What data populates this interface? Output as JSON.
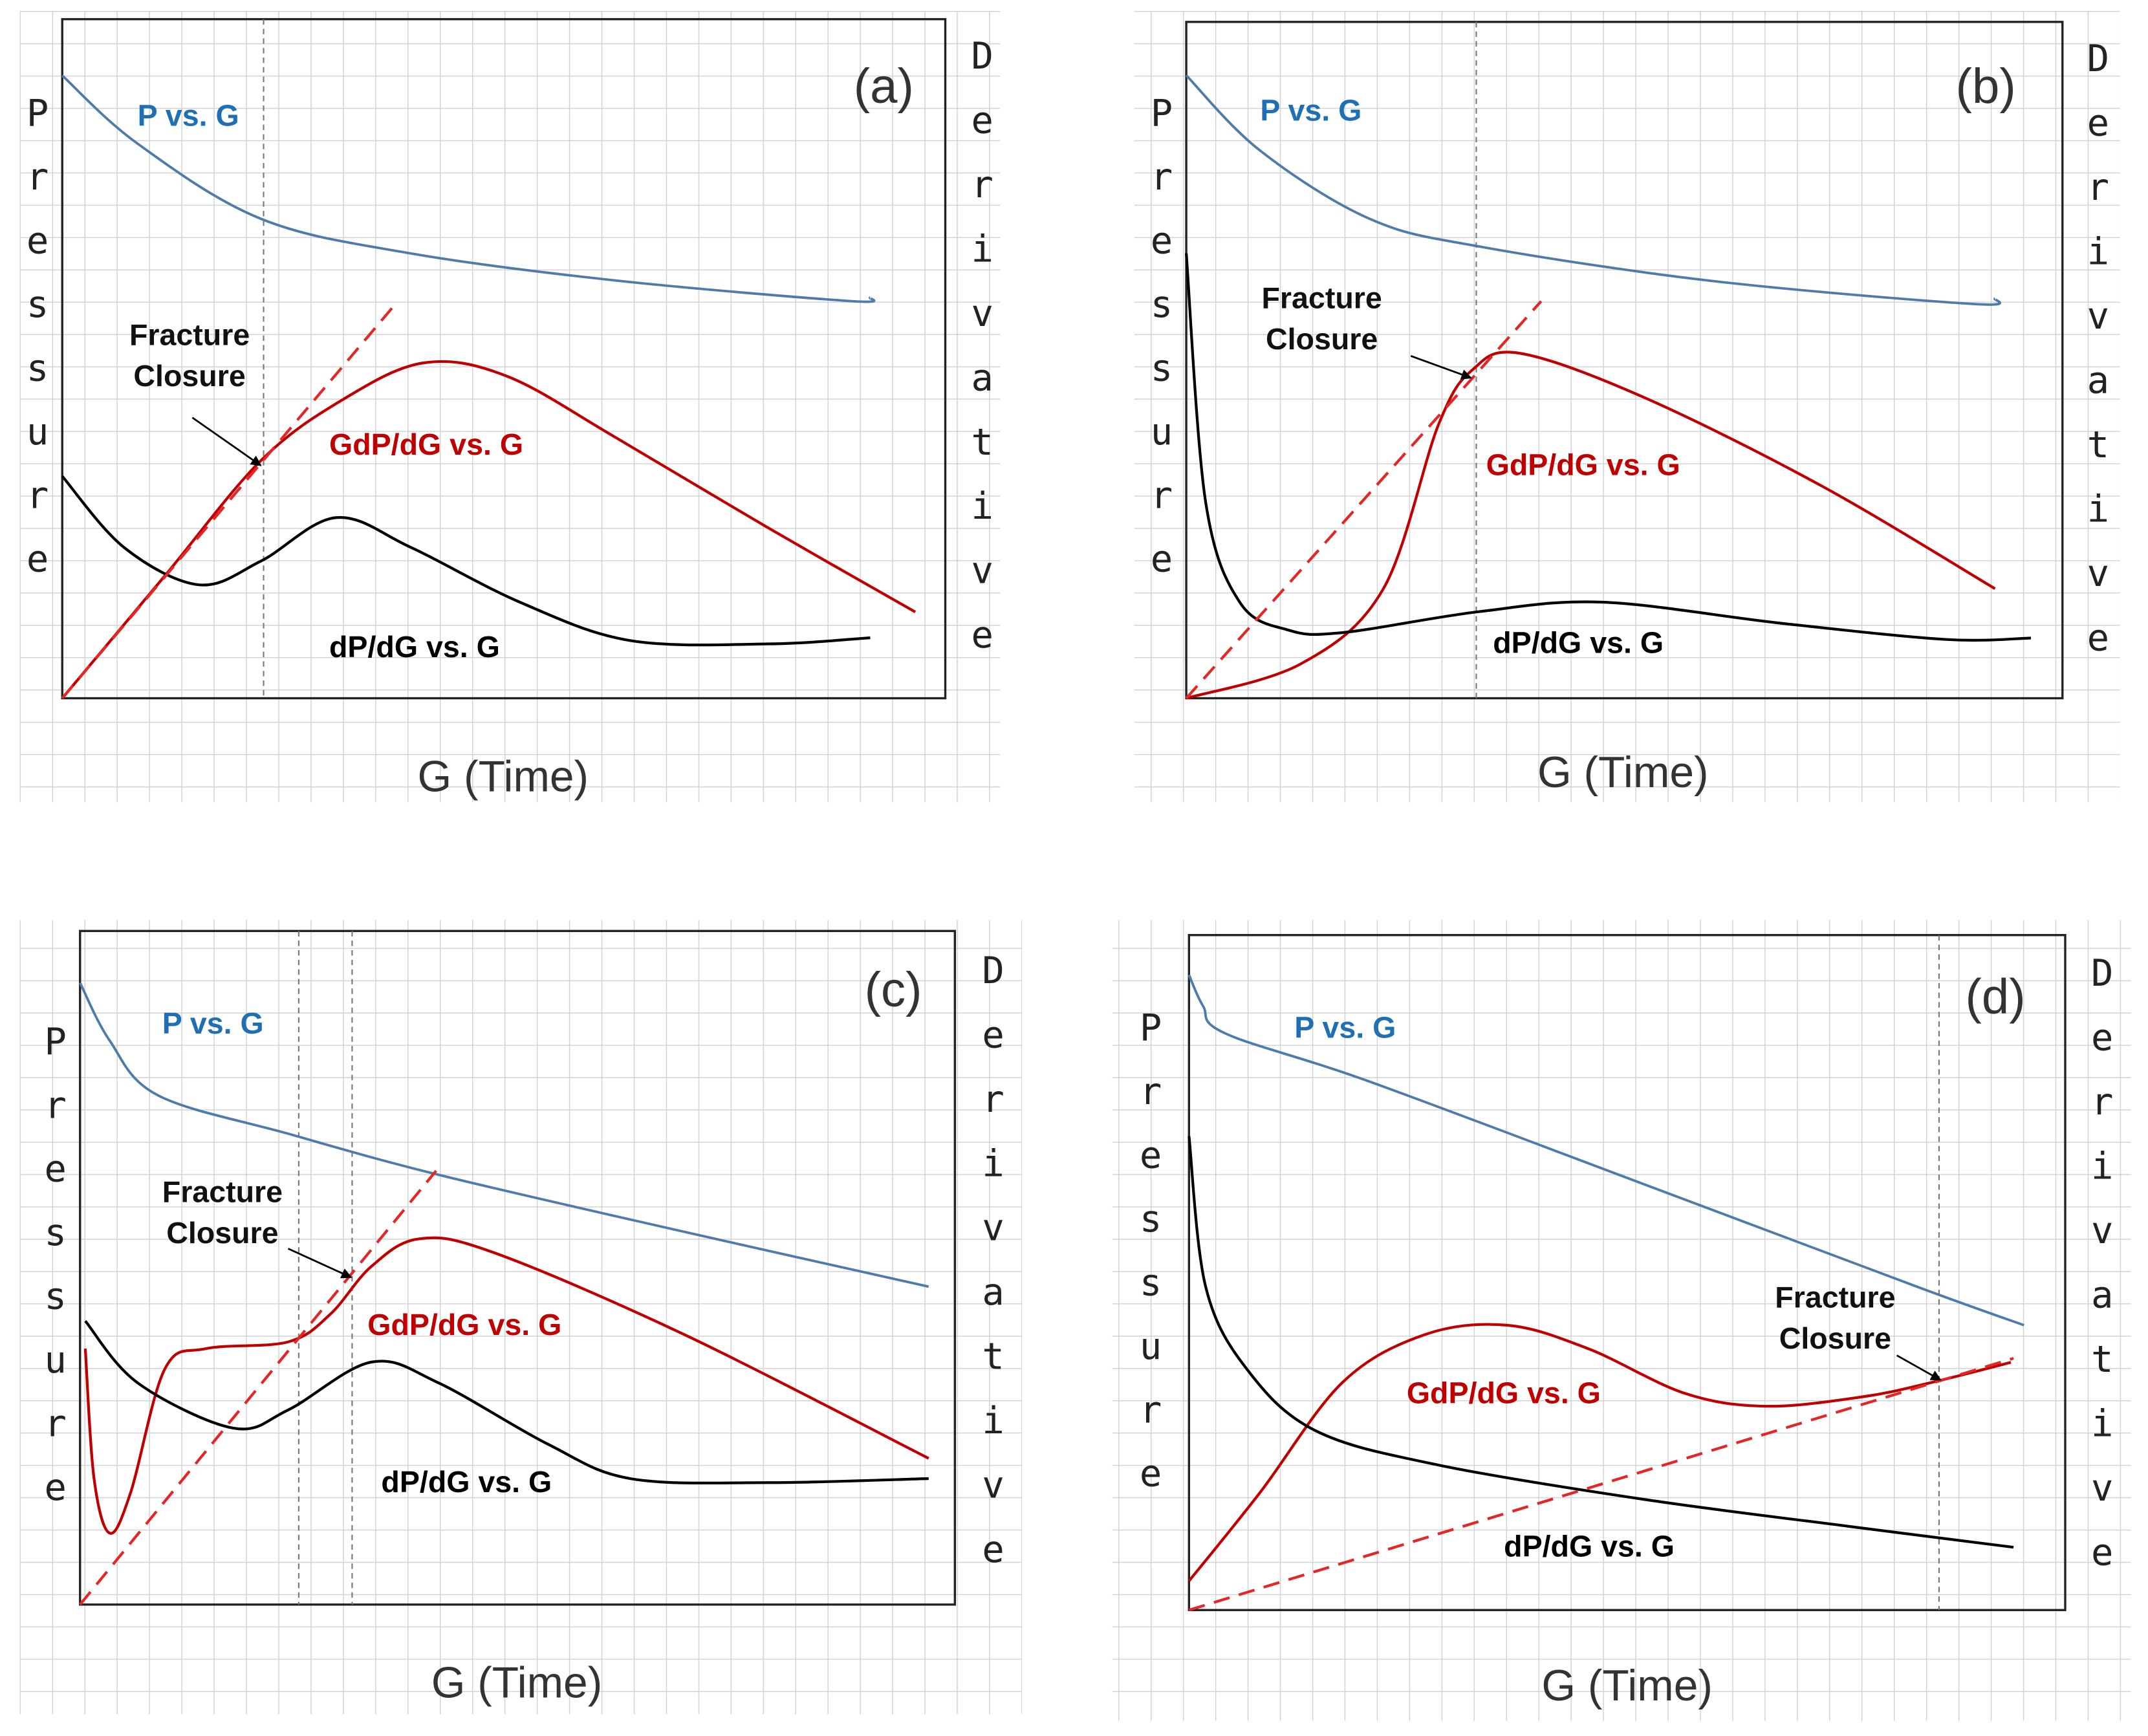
{
  "colors": {
    "pressure": "#4F7BAA",
    "pressure_label": "#1F6FB5",
    "gdp": "#C00000",
    "dp": "#000000",
    "tangent": "#E32626",
    "grid": "#D0D0D0"
  },
  "chart_data": [
    {
      "type": "line",
      "panel": "(a)",
      "xlabel": "G (Time)",
      "ylabel_left": "Pressure",
      "ylabel_right": "Derivative",
      "xlim": [
        0,
        100
      ],
      "ylim": [
        0,
        100
      ],
      "grid": true,
      "annotation": [
        "Fracture",
        "Closure"
      ],
      "closure_x": [
        22.8
      ],
      "series": [
        {
          "name": "P vs. G",
          "key": "pressure",
          "points": [
            [
              0,
              91.7
            ],
            [
              8.5,
              81.7
            ],
            [
              22.5,
              70.6
            ],
            [
              39.5,
              65.5
            ],
            [
              62.8,
              61.5
            ],
            [
              89.1,
              58.5
            ],
            [
              91.5,
              59
            ]
          ]
        },
        {
          "name": "GdP/dG vs. G",
          "key": "gdp",
          "points": [
            [
              0,
              0
            ],
            [
              11.6,
              18
            ],
            [
              22.5,
              35
            ],
            [
              31.8,
              44
            ],
            [
              41,
              49.4
            ],
            [
              50.4,
              47.4
            ],
            [
              62.8,
              38.3
            ],
            [
              79.8,
              25.2
            ],
            [
              96.6,
              12.7
            ]
          ]
        },
        {
          "name": "dP/dG vs. G",
          "key": "dp",
          "points": [
            [
              0,
              32.7
            ],
            [
              7,
              22.2
            ],
            [
              15.5,
              16.7
            ],
            [
              22.5,
              20.2
            ],
            [
              31,
              26.6
            ],
            [
              39.5,
              22.2
            ],
            [
              51.9,
              14.1
            ],
            [
              64.3,
              8.5
            ],
            [
              80,
              8
            ],
            [
              91.5,
              8.9
            ]
          ]
        },
        {
          "name": "tangent",
          "key": "tangent",
          "points": [
            [
              0,
              0
            ],
            [
              37.7,
              58
            ]
          ]
        }
      ]
    },
    {
      "type": "line",
      "panel": "(b)",
      "xlabel": "G (Time)",
      "ylabel_left": "Pressure",
      "ylabel_right": "Derivative",
      "xlim": [
        0,
        100
      ],
      "ylim": [
        0,
        100
      ],
      "grid": true,
      "annotation": [
        "Fracture",
        "Closure"
      ],
      "closure_x": [
        33.1
      ],
      "series": [
        {
          "name": "P vs. G",
          "key": "pressure",
          "points": [
            [
              0,
              92.1
            ],
            [
              8.4,
              81
            ],
            [
              20.9,
              70.9
            ],
            [
              33.4,
              66.8
            ],
            [
              60,
              61.7
            ],
            [
              89.7,
              58.3
            ],
            [
              92.3,
              59.1
            ]
          ]
        },
        {
          "name": "GdP/dG vs. G",
          "key": "gdp",
          "points": [
            [
              0,
              0
            ],
            [
              13.1,
              5.1
            ],
            [
              22.5,
              16.2
            ],
            [
              28.8,
              40.5
            ],
            [
              32.7,
              48.6
            ],
            [
              38.1,
              51
            ],
            [
              52.2,
              44.5
            ],
            [
              72.5,
              31.4
            ],
            [
              92.3,
              16.2
            ]
          ]
        },
        {
          "name": "dP/dG vs. G",
          "key": "dp",
          "points": [
            [
              0,
              65.8
            ],
            [
              2.2,
              29.1
            ],
            [
              6.1,
              14.2
            ],
            [
              11.6,
              10.1
            ],
            [
              17.8,
              9.7
            ],
            [
              33.4,
              12.8
            ],
            [
              47.5,
              14.2
            ],
            [
              67.8,
              11.1
            ],
            [
              86.6,
              8.7
            ],
            [
              96.4,
              8.9
            ]
          ]
        },
        {
          "name": "tangent",
          "key": "tangent",
          "points": [
            [
              0,
              0
            ],
            [
              40.5,
              58.7
            ]
          ]
        }
      ]
    },
    {
      "type": "line",
      "panel": "(c)",
      "xlabel": "G (Time)",
      "ylabel_left": "Pressure",
      "ylabel_right": "Derivative",
      "xlim": [
        0,
        100
      ],
      "ylim": [
        0,
        100
      ],
      "grid": true,
      "annotation": [
        "Fracture",
        "Closure"
      ],
      "closure_x": [
        25,
        31.1
      ],
      "series": [
        {
          "name": "P vs. G",
          "key": "pressure",
          "points": [
            [
              0,
              92.3
            ],
            [
              3.4,
              83.7
            ],
            [
              8.9,
              75.6
            ],
            [
              23.8,
              69.9
            ],
            [
              41,
              63.8
            ],
            [
              69.2,
              55.3
            ],
            [
              97,
              47.2
            ]
          ]
        },
        {
          "name": "GdP/dG vs. G",
          "key": "gdp",
          "points": [
            [
              0.6,
              38
            ],
            [
              1.6,
              18.7
            ],
            [
              3.4,
              10.6
            ],
            [
              5.8,
              16.7
            ],
            [
              9.7,
              35
            ],
            [
              14.4,
              38
            ],
            [
              23.8,
              39
            ],
            [
              28.6,
              43.1
            ],
            [
              33.3,
              50.2
            ],
            [
              38.8,
              54.3
            ],
            [
              47.4,
              52.2
            ],
            [
              69.2,
              40
            ],
            [
              97,
              21.7
            ]
          ]
        },
        {
          "name": "dP/dG vs. G",
          "key": "dp",
          "points": [
            [
              0.6,
              42.1
            ],
            [
              6.6,
              32.9
            ],
            [
              17.5,
              26.2
            ],
            [
              23.8,
              28.9
            ],
            [
              33.3,
              36
            ],
            [
              41,
              32.9
            ],
            [
              53.5,
              23.8
            ],
            [
              62.9,
              18.7
            ],
            [
              78.6,
              18.1
            ],
            [
              97,
              18.7
            ]
          ]
        },
        {
          "name": "tangent",
          "key": "tangent",
          "points": [
            [
              0,
              0
            ],
            [
              40.7,
              64.4
            ]
          ]
        }
      ]
    },
    {
      "type": "line",
      "panel": "(d)",
      "xlabel": "G (Time)",
      "ylabel_left": "Pressure",
      "ylabel_right": "Derivative",
      "xlim": [
        0,
        100
      ],
      "ylim": [
        0,
        100
      ],
      "grid": true,
      "annotation": [
        "Fracture",
        "Closure"
      ],
      "closure_x": [
        85.6
      ],
      "series": [
        {
          "name": "P vs. G",
          "key": "pressure",
          "points": [
            [
              0,
              94.1
            ],
            [
              1.6,
              89.5
            ],
            [
              4.2,
              85.4
            ],
            [
              20.6,
              78.3
            ],
            [
              51.9,
              63.1
            ],
            [
              83.1,
              47.9
            ],
            [
              95.3,
              42.2
            ]
          ]
        },
        {
          "name": "GdP/dG vs. G",
          "key": "gdp",
          "points": [
            [
              0,
              4.3
            ],
            [
              8.1,
              17.4
            ],
            [
              17.5,
              33.7
            ],
            [
              26.9,
              40.8
            ],
            [
              36.3,
              42.2
            ],
            [
              45.6,
              38.7
            ],
            [
              56.6,
              32.1
            ],
            [
              65.9,
              30.2
            ],
            [
              76.9,
              31.6
            ],
            [
              84.7,
              33.7
            ],
            [
              93.8,
              36.7
            ]
          ]
        },
        {
          "name": "dP/dG vs. G",
          "key": "dp",
          "points": [
            [
              0,
              70.2
            ],
            [
              1.9,
              47.9
            ],
            [
              6.6,
              35.7
            ],
            [
              14.4,
              26.6
            ],
            [
              28.4,
              21.5
            ],
            [
              51.9,
              16.4
            ],
            [
              75.3,
              12.4
            ],
            [
              94.1,
              9.3
            ]
          ]
        },
        {
          "name": "tangent",
          "key": "tangent",
          "points": [
            [
              0,
              0
            ],
            [
              94.1,
              37.3
            ]
          ]
        }
      ]
    }
  ]
}
